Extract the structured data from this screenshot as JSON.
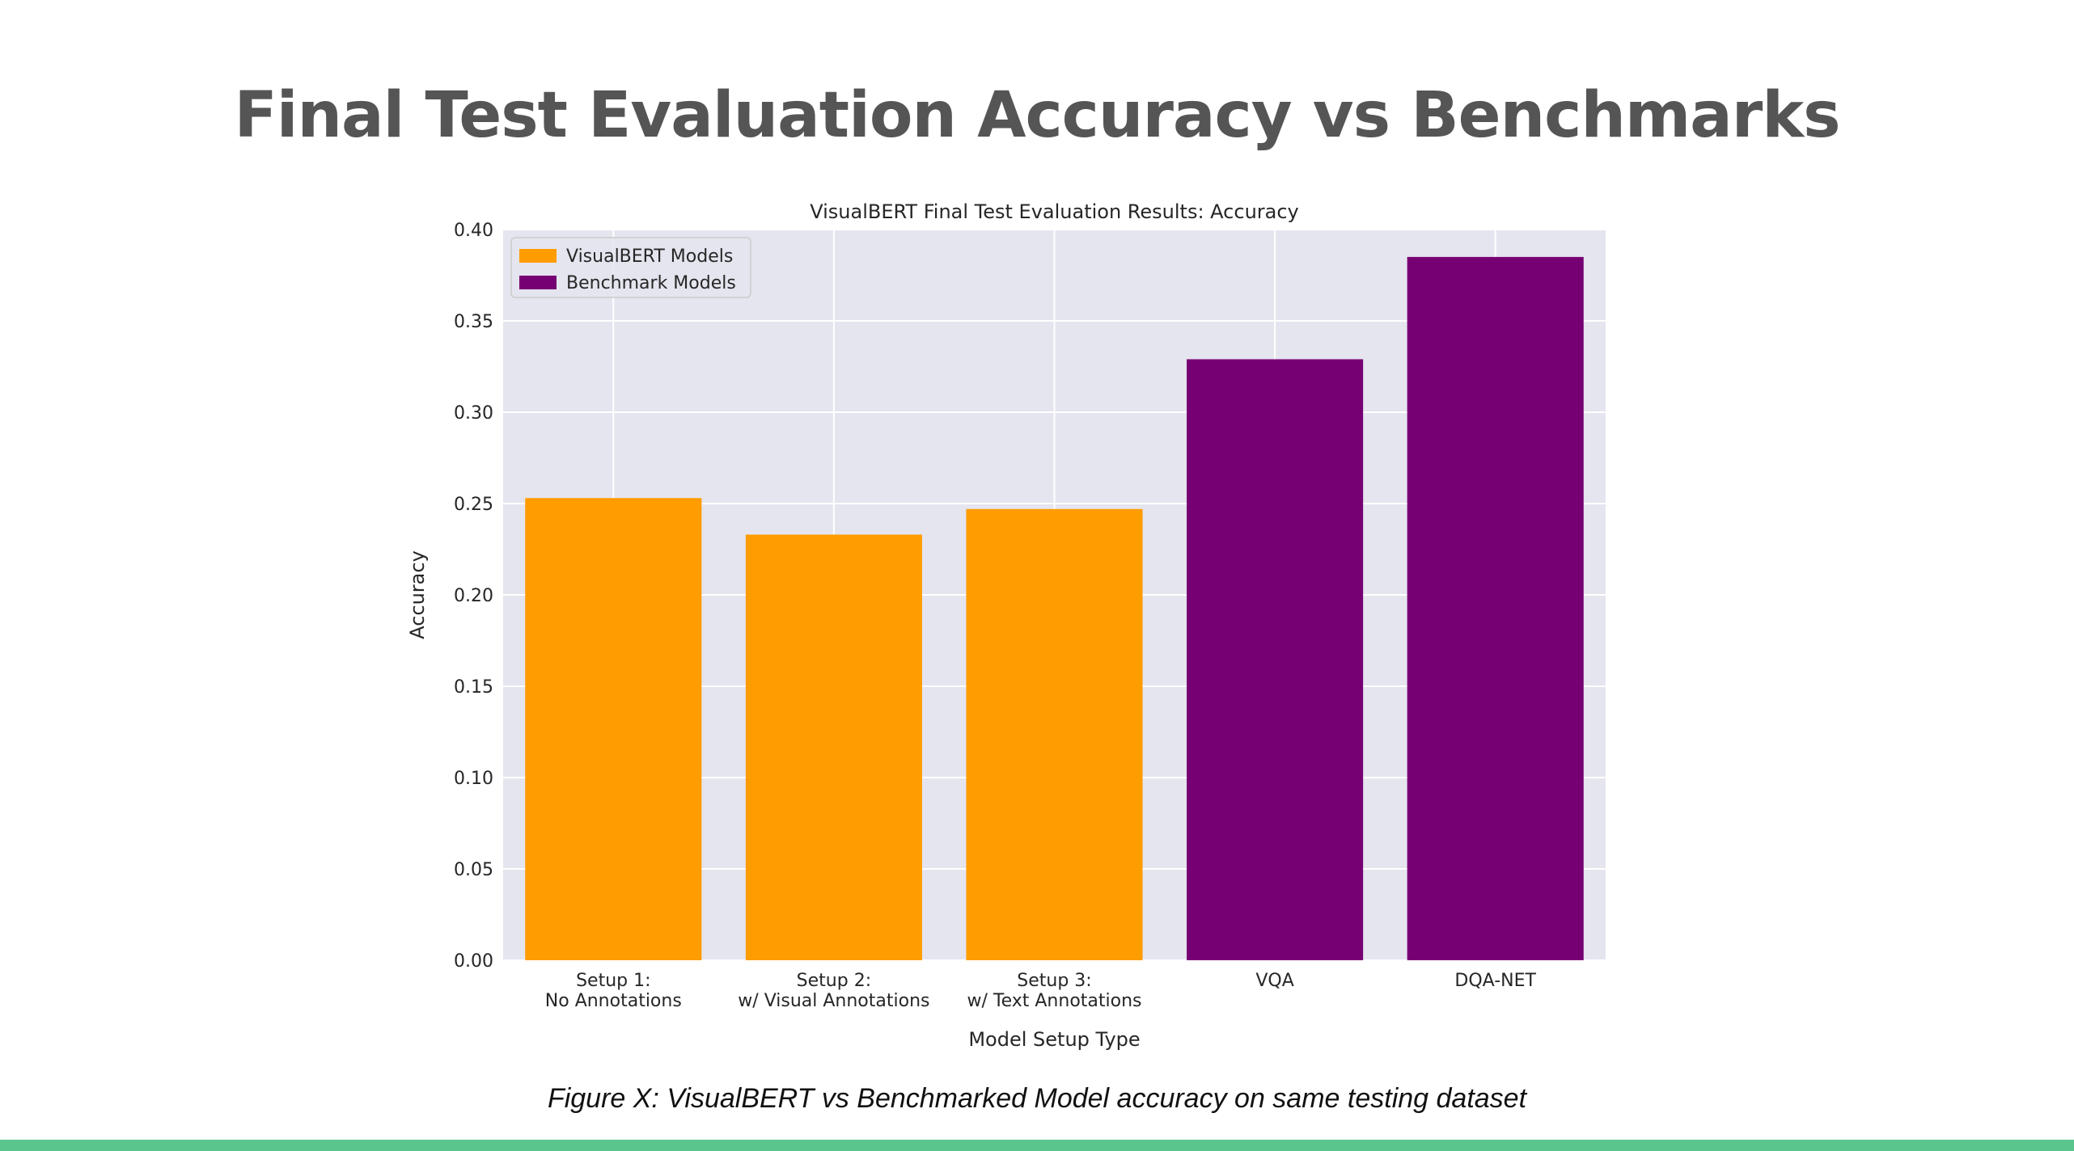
{
  "slide": {
    "title": "Final Test Evaluation Accuracy vs Benchmarks",
    "caption": "Figure X: VisualBERT vs Benchmarked Model accuracy on same testing dataset",
    "accent_bar_color": "#5ac68d"
  },
  "chart_data": {
    "type": "bar",
    "title": "VisualBERT Final Test Evaluation Results: Accuracy",
    "xlabel": "Model Setup Type",
    "ylabel": "Accuracy",
    "ylim": [
      0,
      0.4
    ],
    "yticks": [
      "0.00",
      "0.05",
      "0.10",
      "0.15",
      "0.20",
      "0.25",
      "0.30",
      "0.35",
      "0.40"
    ],
    "grid": true,
    "legend_position": "top-left",
    "categories": [
      [
        "Setup 1:",
        "No Annotations"
      ],
      [
        "Setup 2:",
        "w/ Visual Annotations"
      ],
      [
        "Setup 3:",
        "w/ Text Annotations"
      ],
      [
        "VQA"
      ],
      [
        "DQA-NET"
      ]
    ],
    "values": [
      0.253,
      0.233,
      0.247,
      0.329,
      0.385
    ],
    "groups": [
      0,
      0,
      0,
      1,
      1
    ],
    "series": [
      {
        "name": "VisualBERT Models",
        "color": "#ff9c00"
      },
      {
        "name": "Benchmark Models",
        "color": "#760073"
      }
    ],
    "plot_background": "#e5e5ef",
    "grid_color": "#ffffff"
  }
}
